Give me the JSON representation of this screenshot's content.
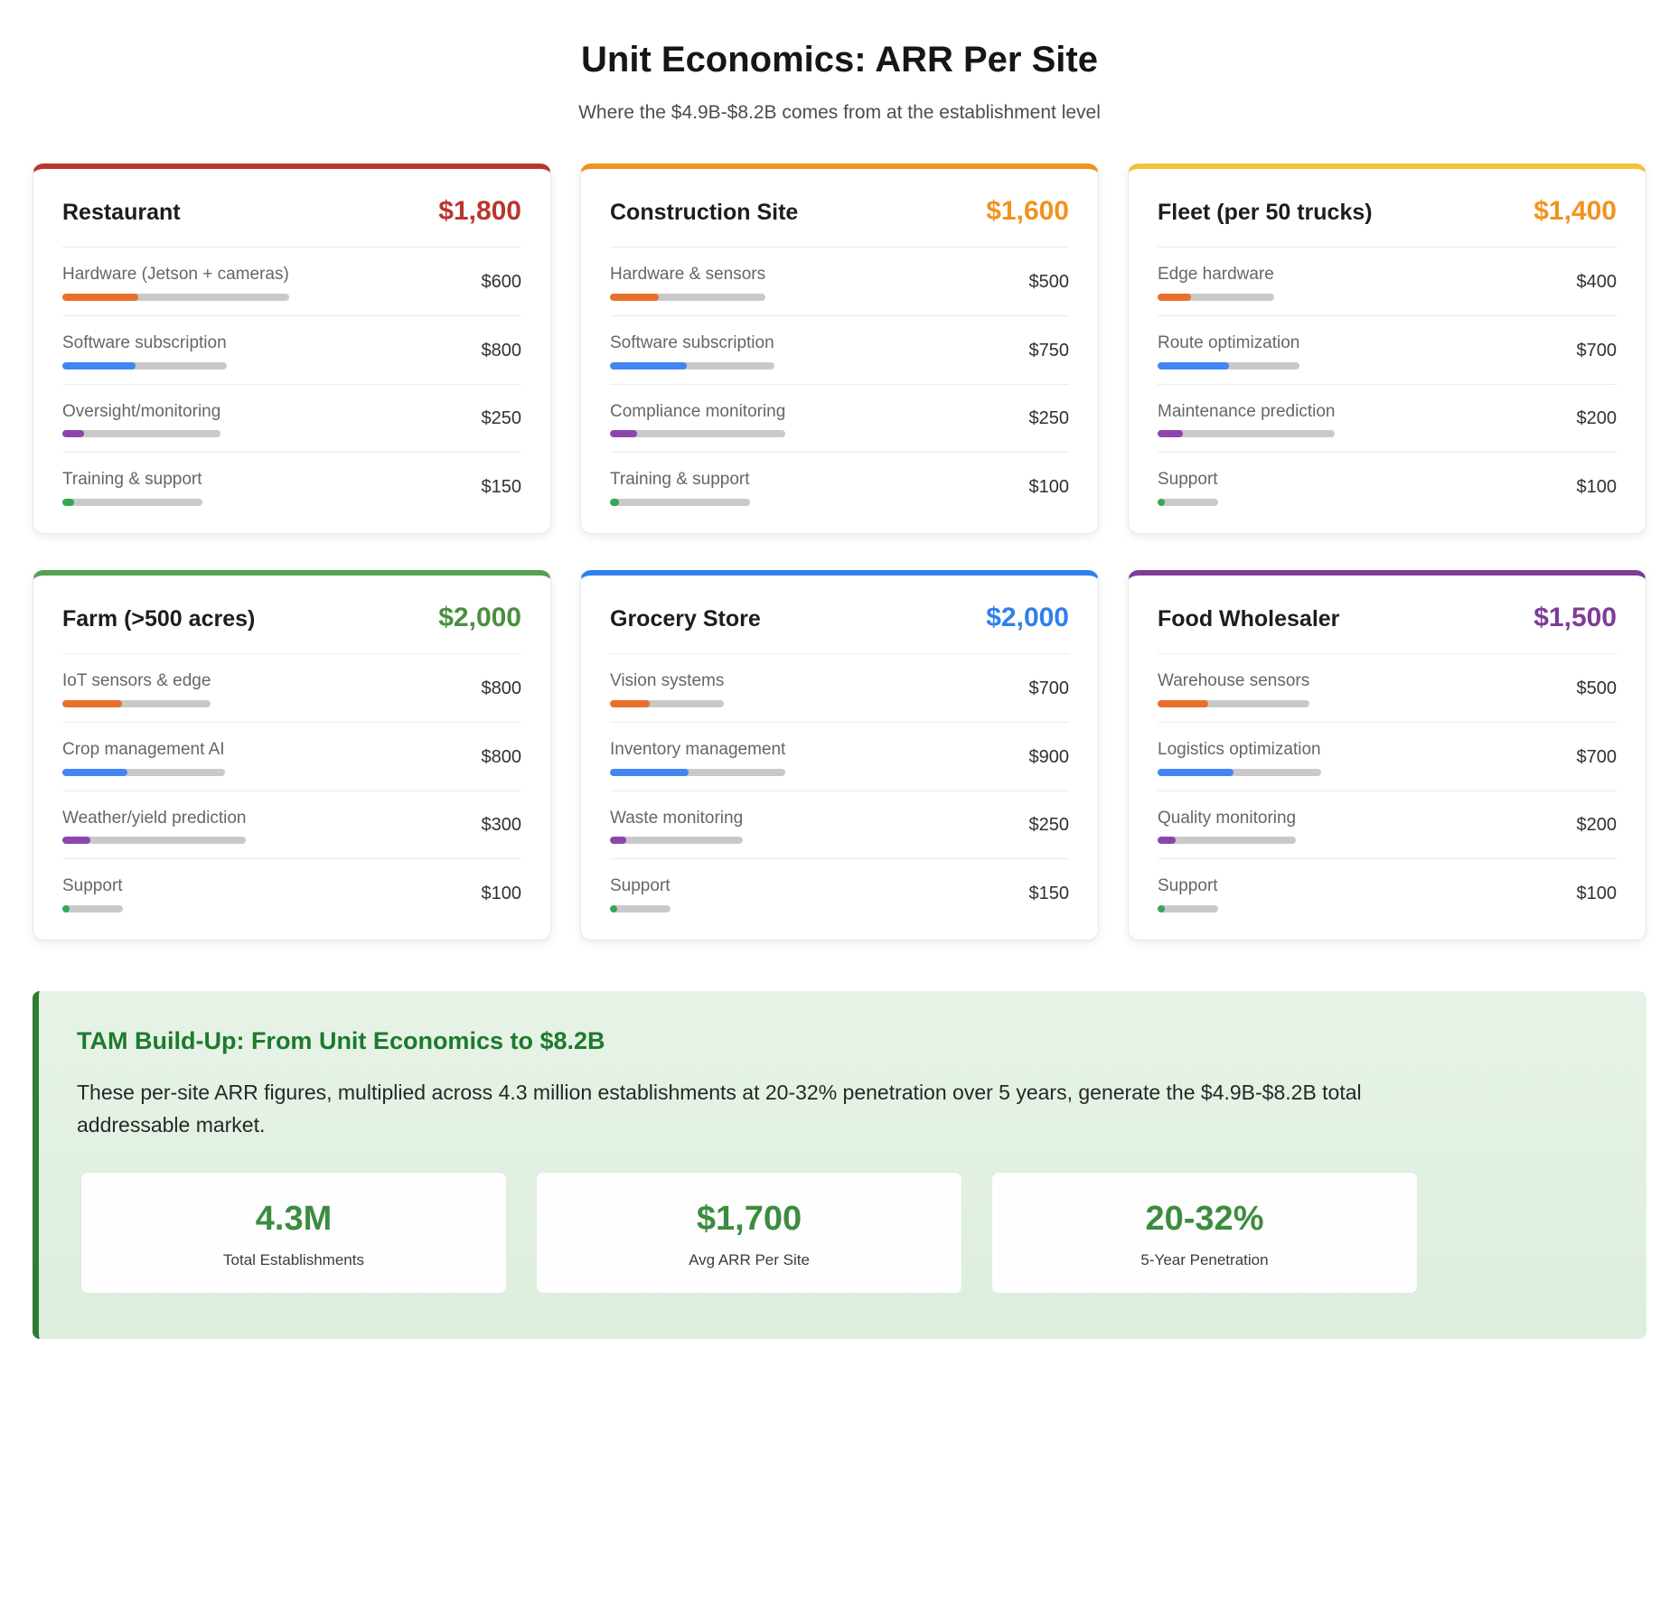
{
  "header": {
    "title": "Unit Economics: ARR Per Site",
    "subtitle": "Where the $4.9B-$8.2B comes from at the establishment level"
  },
  "bar_colors": [
    "#e8702a",
    "#4285f4",
    "#8e44ad",
    "#34a853"
  ],
  "chart_data": [
    {
      "type": "bar",
      "title": "Restaurant",
      "total": "$1,800",
      "accent": "#b8372f",
      "total_color": "#b8372f",
      "categories": [
        "Hardware (Jetson + cameras)",
        "Software subscription",
        "Oversight/monitoring",
        "Training & support"
      ],
      "values": [
        600,
        800,
        250,
        150
      ],
      "value_labels": [
        "$600",
        "$800",
        "$250",
        "$150"
      ]
    },
    {
      "type": "bar",
      "title": "Construction Site",
      "total": "$1,600",
      "accent": "#f0931f",
      "total_color": "#f0931f",
      "categories": [
        "Hardware & sensors",
        "Software subscription",
        "Compliance monitoring",
        "Training & support"
      ],
      "values": [
        500,
        750,
        250,
        100
      ],
      "value_labels": [
        "$500",
        "$750",
        "$250",
        "$100"
      ]
    },
    {
      "type": "bar",
      "title": "Fleet (per 50 trucks)",
      "total": "$1,400",
      "accent": "#f2c23e",
      "total_color": "#f0931f",
      "categories": [
        "Edge hardware",
        "Route optimization",
        "Maintenance prediction",
        "Support"
      ],
      "values": [
        400,
        700,
        200,
        100
      ],
      "value_labels": [
        "$400",
        "$700",
        "$200",
        "$100"
      ]
    },
    {
      "type": "bar",
      "title": "Farm (>500 acres)",
      "total": "$2,000",
      "accent": "#55a055",
      "total_color": "#4a8f3f",
      "categories": [
        "IoT sensors & edge",
        "Crop management AI",
        "Weather/yield prediction",
        "Support"
      ],
      "values": [
        800,
        800,
        300,
        100
      ],
      "value_labels": [
        "$800",
        "$800",
        "$300",
        "$100"
      ]
    },
    {
      "type": "bar",
      "title": "Grocery Store",
      "total": "$2,000",
      "accent": "#2f80ed",
      "total_color": "#2f80ed",
      "categories": [
        "Vision systems",
        "Inventory management",
        "Waste monitoring",
        "Support"
      ],
      "values": [
        700,
        900,
        250,
        150
      ],
      "value_labels": [
        "$700",
        "$900",
        "$250",
        "$150"
      ]
    },
    {
      "type": "bar",
      "title": "Food Wholesaler",
      "total": "$1,500",
      "accent": "#7d3c98",
      "total_color": "#7d3c98",
      "categories": [
        "Warehouse sensors",
        "Logistics optimization",
        "Quality monitoring",
        "Support"
      ],
      "values": [
        500,
        700,
        200,
        100
      ],
      "value_labels": [
        "$500",
        "$700",
        "$200",
        "$100"
      ]
    }
  ],
  "tam": {
    "heading": "TAM Build-Up: From Unit Economics to $8.2B",
    "body": "These per-site ARR figures, multiplied across 4.3 million establishments at 20-32% penetration over 5 years, generate the $4.9B-$8.2B total addressable market.",
    "stats": [
      {
        "value": "4.3M",
        "label": "Total Establishments"
      },
      {
        "value": "$1,700",
        "label": "Avg ARR Per Site"
      },
      {
        "value": "20-32%",
        "label": "5-Year Penetration"
      }
    ]
  }
}
